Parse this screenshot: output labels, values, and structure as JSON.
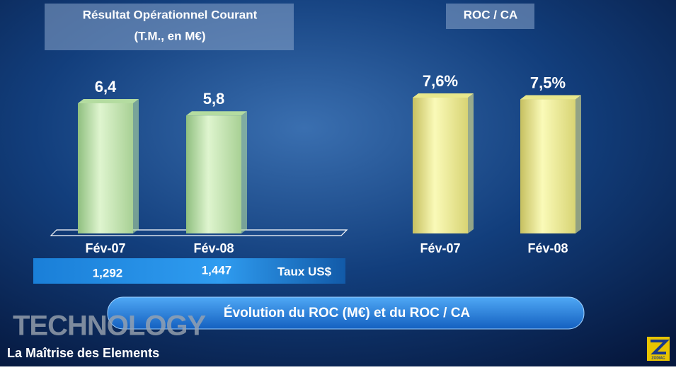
{
  "chart_data": [
    {
      "type": "bar",
      "title": "Résultat Opérationnel Courant",
      "subtitle": "(T.M., en M€)",
      "categories": [
        "Fév-07",
        "Fév-08"
      ],
      "values": [
        6.4,
        5.8
      ],
      "value_labels": [
        "6,4",
        "5,8"
      ],
      "color": "#b4dca0"
    },
    {
      "type": "bar",
      "title": "ROC / CA",
      "categories": [
        "Fév-07",
        "Fév-08"
      ],
      "values": [
        7.6,
        7.5
      ],
      "value_labels": [
        "7,6%",
        "7,5%"
      ],
      "color": "#e8e88c"
    }
  ],
  "exchange_row": {
    "values": [
      "1,292",
      "1,447"
    ],
    "label": "Taux US$"
  },
  "banner": "Évolution du ROC (M€) et du ROC / CA",
  "branding": {
    "word": "TECHNOLOGY",
    "tagline": "La Maîtrise des Elements",
    "logo": "ZODIAC"
  }
}
